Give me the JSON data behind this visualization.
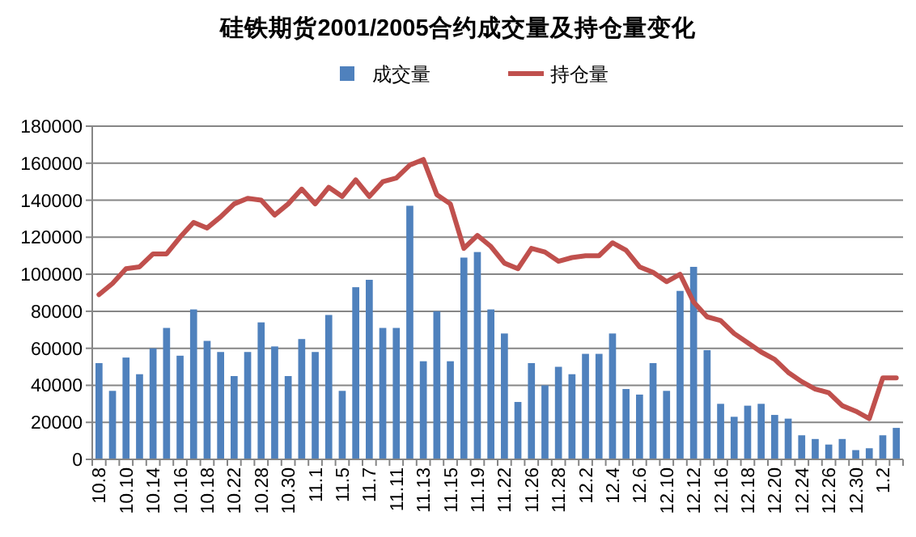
{
  "chart_data": {
    "type": "bar",
    "title": "硅铁期货2001/2005合约成交量及持仓量变化",
    "categories": [
      "10.8",
      null,
      "10.10",
      null,
      "10.14",
      null,
      "10.16",
      null,
      "10.18",
      null,
      "10.22",
      null,
      "10.28",
      null,
      "10.30",
      null,
      "11.1",
      null,
      "11.5",
      null,
      "11.7",
      null,
      "11.11",
      null,
      "11.13",
      null,
      "11.15",
      null,
      "11.19",
      null,
      "11.22",
      null,
      "11.26",
      null,
      "11.28",
      null,
      "12.2",
      null,
      "12.4",
      null,
      "12.6",
      null,
      "12.10",
      null,
      "12.12",
      null,
      "12.16",
      null,
      "12.18",
      null,
      "12.20",
      null,
      "12.24",
      null,
      "12.26",
      null,
      "12.30",
      null,
      "1.2",
      null
    ],
    "series": [
      {
        "name": "成交量",
        "color": "#4f81bd",
        "values": [
          52000,
          37000,
          55000,
          46000,
          60000,
          71000,
          56000,
          81000,
          64000,
          58000,
          45000,
          58000,
          74000,
          61000,
          45000,
          65000,
          58000,
          78000,
          37000,
          93000,
          97000,
          71000,
          71000,
          137000,
          53000,
          80000,
          53000,
          109000,
          112000,
          81000,
          68000,
          31000,
          52000,
          40000,
          50000,
          46000,
          57000,
          57000,
          68000,
          38000,
          35000,
          52000,
          37000,
          91000,
          104000,
          59000,
          30000,
          23000,
          29000,
          30000,
          24000,
          22000,
          13000,
          11000,
          8000,
          11000,
          5000,
          6000,
          13000,
          17000
        ]
      },
      {
        "name": "持仓量",
        "type": "line",
        "color": "#c0504d",
        "values": [
          89000,
          95000,
          103000,
          104000,
          111000,
          111000,
          120000,
          128000,
          125000,
          131000,
          138000,
          141000,
          140000,
          132000,
          138000,
          146000,
          138000,
          147000,
          142000,
          151000,
          142000,
          150000,
          152000,
          159000,
          162000,
          143000,
          138000,
          114000,
          121000,
          115000,
          106000,
          103000,
          114000,
          112000,
          107000,
          109000,
          110000,
          110000,
          117000,
          113000,
          104000,
          101000,
          96000,
          100000,
          85000,
          77000,
          75000,
          68000,
          63000,
          58000,
          54000,
          47000,
          42000,
          38000,
          36000,
          29000,
          26000,
          22000,
          44000,
          44000
        ]
      }
    ],
    "ylim": [
      0,
      180000
    ],
    "yticks": [
      0,
      20000,
      40000,
      60000,
      80000,
      100000,
      120000,
      140000,
      160000,
      180000
    ],
    "grid": "y",
    "legend": "top",
    "marker": "none"
  }
}
